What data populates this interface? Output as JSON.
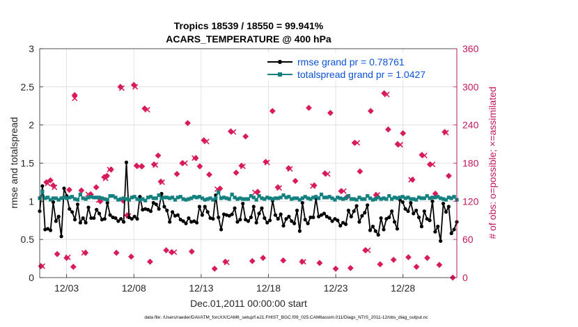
{
  "chart_data": {
    "type": "line",
    "title_line1": "Tropics 18539 / 18550 = 99.941%",
    "title_line2": "ACARS_TEMPERATURE @ 400 hPa",
    "xlabel": "Dec.01,2011 00:00:00 start",
    "ylabel_left": "rmse and totalspread",
    "ylabel_right": "# of obs: o=possible; ×=assimilated",
    "footer": "data file: /Users/raeder/DAI/ATM_forcXX/CAM6_setup/f.e21.FHIST_BGC.f09_025.CAM6assim.011/Diags_NTrS_2011-12/obs_diag_output.nc",
    "x_tick_labels": [
      "12/03",
      "12/08",
      "12/13",
      "12/18",
      "12/23",
      "12/28"
    ],
    "x_tick_days": [
      3,
      8,
      13,
      18,
      23,
      28
    ],
    "xlim_days": [
      1,
      32
    ],
    "ylim_left": [
      0,
      3
    ],
    "y_ticks_left": [
      "0",
      "0.5",
      "1",
      "1.5",
      "2",
      "2.5",
      "3"
    ],
    "y_tick_values_left": [
      0,
      0.5,
      1,
      1.5,
      2,
      2.5,
      3
    ],
    "ylim_right": [
      0,
      360
    ],
    "y_ticks_right": [
      "0",
      "60",
      "120",
      "180",
      "240",
      "300",
      "360"
    ],
    "y_tick_values_right": [
      0,
      60,
      120,
      180,
      240,
      300,
      360
    ],
    "legend_location": "top-right",
    "legend": [
      {
        "label": "rmse grand pr = 0.78761",
        "color": "#000000"
      },
      {
        "label": "totalspread grand pr = 1.0427",
        "color": "#148080"
      }
    ],
    "colors": {
      "rmse": "#000000",
      "spread": "#148080",
      "obs": "#d81b5a",
      "legend_text": "#0a52d6",
      "axis_right": "#c2185b"
    },
    "series": [
      {
        "name": "rmse",
        "color": "#000000",
        "values": [
          0.87,
          1.2,
          0.63,
          0.64,
          0.62,
          0.99,
          0.74,
          0.8,
          0.54,
          1.17,
          1.07,
          0.9,
          0.86,
          0.76,
          0.96,
          0.72,
          0.78,
          0.72,
          0.92,
          0.78,
          0.78,
          0.89,
          0.84,
          0.76,
          0.77,
          0.98,
          0.82,
          0.79,
          0.78,
          0.74,
          0.77,
          0.73,
          1.51,
          0.79,
          0.77,
          0.8,
          0.77,
          1.06,
          0.89,
          0.9,
          0.89,
          0.87,
          0.98,
          0.96,
          0.9,
          1.1,
          0.93,
          0.88,
          0.73,
          0.86,
          0.81,
          0.82,
          0.76,
          0.74,
          0.71,
          0.78,
          0.73,
          0.74,
          0.72,
          0.93,
          0.82,
          0.93,
          0.86,
          0.78,
          0.77,
          1.08,
          0.79,
          0.63,
          0.83,
          0.82,
          0.81,
          0.83,
          0.91,
          0.73,
          0.76,
          0.97,
          0.76,
          0.74,
          0.79,
          0.93,
          0.72,
          0.84,
          0.91,
          0.78,
          0.72,
          0.75,
          1.01,
          0.82,
          0.77,
          0.83,
          0.68,
          0.77,
          0.8,
          0.74,
          0.71,
          0.88,
          0.61,
          0.98,
          0.76,
          0.71,
          0.79,
          0.79,
          1.04,
          0.8,
          0.82,
          0.84,
          0.8,
          0.78,
          0.74,
          0.77,
          0.75,
          0.68,
          0.72,
          0.7,
          0.88,
          0.8,
          0.87,
          0.94,
          0.73,
          0.81,
          0.85,
          0.95,
          0.62,
          0.67,
          0.61,
          0.56,
          0.78,
          0.63,
          0.77,
          0.79,
          0.87,
          0.73,
          0.64,
          1.02,
          0.99,
          0.9,
          0.87,
          0.98,
          0.84,
          0.88,
          0.79,
          0.67,
          0.87,
          0.77,
          0.75,
          1.0,
          0.6,
          0.67,
          0.48,
          0.97,
          0.86,
          0.93,
          0.58,
          0.63,
          0.73
        ]
      },
      {
        "name": "totalspread",
        "color": "#148080",
        "values": [
          1.04,
          1.13,
          1.04,
          1.05,
          1.02,
          1.04,
          1.04,
          1.02,
          1.04,
          1.05,
          1.04,
          1.05,
          1.06,
          1.03,
          1.02,
          1.09,
          1.04,
          1.03,
          1.05,
          1.06,
          1.05,
          1.05,
          1.05,
          1.04,
          1.03,
          1.02,
          1.07,
          1.07,
          1.05,
          1.02,
          1.03,
          1.04,
          1.03,
          1.02,
          1.05,
          1.06,
          1.03,
          1.02,
          1.03,
          1.01,
          1.05,
          1.06,
          1.04,
          1.04,
          1.08,
          1.04,
          1.05,
          1.05,
          1.04,
          1.05,
          1.02,
          1.05,
          1.06,
          1.03,
          1.02,
          1.03,
          1.04,
          1.06,
          1.05,
          1.06,
          1.04,
          1.02,
          1.03,
          1.04,
          1.02,
          1.04,
          1.12,
          1.04,
          1.05,
          1.04,
          1.03,
          1.09,
          1.05,
          1.03,
          1.04,
          1.03,
          1.03,
          1.03,
          1.07,
          1.05,
          1.02,
          1.07,
          1.04,
          1.03,
          1.05,
          1.04,
          1.03,
          1.04,
          1.04,
          1.05,
          1.08,
          1.05,
          1.06,
          1.03,
          1.04,
          1.04,
          1.02,
          1.04,
          1.06,
          1.04,
          1.03,
          1.05,
          1.06,
          1.04,
          1.09,
          1.05,
          1.05,
          1.06,
          1.04,
          1.02,
          1.05,
          1.04,
          1.03,
          1.04,
          1.07,
          1.03,
          1.03,
          1.02,
          1.05,
          1.03,
          1.03,
          1.07,
          1.04,
          1.02,
          1.03,
          1.05,
          1.03,
          1.04,
          1.03,
          1.07,
          1.03,
          1.05,
          1.04,
          1.05,
          1.06,
          1.04,
          1.05,
          1.03,
          1.03,
          1.02,
          1.05,
          1.04,
          1.04,
          1.07,
          1.04,
          1.05,
          1.05,
          1.06,
          1.04,
          1.03,
          1.02,
          1.05,
          1.04,
          1.06,
          1.02
        ]
      }
    ],
    "obs_possible": [
      [
        1.1,
        18
      ],
      [
        1.5,
        150
      ],
      [
        1.8,
        153
      ],
      [
        2.0,
        145
      ],
      [
        2.3,
        37
      ],
      [
        3.0,
        31
      ],
      [
        3.2,
        138
      ],
      [
        3.5,
        17
      ],
      [
        3.6,
        287
      ],
      [
        4.1,
        137
      ],
      [
        4.4,
        39
      ],
      [
        4.8,
        131
      ],
      [
        5.2,
        142
      ],
      [
        5.5,
        120
      ],
      [
        5.8,
        158
      ],
      [
        6.0,
        160
      ],
      [
        6.3,
        170
      ],
      [
        6.7,
        39
      ],
      [
        7.0,
        300
      ],
      [
        7.2,
        121
      ],
      [
        7.5,
        98
      ],
      [
        7.8,
        33
      ],
      [
        8.0,
        303
      ],
      [
        8.2,
        176
      ],
      [
        8.6,
        175
      ],
      [
        8.8,
        266
      ],
      [
        9.2,
        25
      ],
      [
        9.5,
        178
      ],
      [
        9.8,
        192
      ],
      [
        10.0,
        151
      ],
      [
        10.4,
        43
      ],
      [
        10.8,
        40
      ],
      [
        11.2,
        163
      ],
      [
        11.6,
        180
      ],
      [
        12.0,
        243
      ],
      [
        12.3,
        41
      ],
      [
        12.6,
        188
      ],
      [
        12.9,
        175
      ],
      [
        13.2,
        216
      ],
      [
        13.6,
        162
      ],
      [
        14.0,
        14
      ],
      [
        14.4,
        140
      ],
      [
        14.8,
        25
      ],
      [
        15.2,
        230
      ],
      [
        15.6,
        165
      ],
      [
        16.0,
        176
      ],
      [
        16.3,
        222
      ],
      [
        16.8,
        26
      ],
      [
        17.2,
        135
      ],
      [
        17.6,
        31
      ],
      [
        17.8,
        182
      ],
      [
        18.3,
        262
      ],
      [
        18.7,
        142
      ],
      [
        19.1,
        27
      ],
      [
        19.5,
        172
      ],
      [
        20.0,
        152
      ],
      [
        20.5,
        25
      ],
      [
        21.0,
        267
      ],
      [
        21.4,
        145
      ],
      [
        21.8,
        23
      ],
      [
        22.2,
        164
      ],
      [
        22.6,
        259
      ],
      [
        23.0,
        14
      ],
      [
        23.4,
        136
      ],
      [
        23.8,
        126
      ],
      [
        24.1,
        15
      ],
      [
        24.4,
        212
      ],
      [
        24.8,
        167
      ],
      [
        25.2,
        43
      ],
      [
        25.6,
        262
      ],
      [
        26.0,
        130
      ],
      [
        26.3,
        21
      ],
      [
        26.6,
        290
      ],
      [
        26.9,
        233
      ],
      [
        27.3,
        28
      ],
      [
        27.6,
        210
      ],
      [
        28.0,
        227
      ],
      [
        28.4,
        32
      ],
      [
        28.7,
        154
      ],
      [
        29.0,
        17
      ],
      [
        29.4,
        193
      ],
      [
        29.8,
        31
      ],
      [
        30.0,
        178
      ],
      [
        30.4,
        132
      ],
      [
        30.7,
        20
      ],
      [
        31.1,
        229
      ],
      [
        31.4,
        160
      ],
      [
        31.7,
        0
      ]
    ],
    "obs_assimilated": [
      [
        1.2,
        18
      ],
      [
        1.6,
        148
      ],
      [
        2.1,
        142
      ],
      [
        3.1,
        32
      ],
      [
        3.6,
        282
      ],
      [
        4.3,
        39
      ],
      [
        4.6,
        131
      ],
      [
        5.4,
        122
      ],
      [
        5.9,
        156
      ],
      [
        6.2,
        170
      ],
      [
        7.1,
        298
      ],
      [
        7.6,
        97
      ],
      [
        8.1,
        300
      ],
      [
        8.4,
        175
      ],
      [
        9.0,
        264
      ],
      [
        9.6,
        177
      ],
      [
        10.1,
        150
      ],
      [
        11.0,
        40
      ],
      [
        11.8,
        180
      ],
      [
        12.5,
        188
      ],
      [
        13.4,
        214
      ],
      [
        14.2,
        139
      ],
      [
        14.9,
        24
      ],
      [
        15.4,
        229
      ],
      [
        16.1,
        175
      ],
      [
        17.0,
        134
      ],
      [
        17.9,
        181
      ],
      [
        18.8,
        141
      ],
      [
        19.6,
        171
      ],
      [
        20.6,
        25
      ],
      [
        21.3,
        144
      ],
      [
        22.4,
        163
      ],
      [
        23.6,
        136
      ],
      [
        24.6,
        212
      ],
      [
        25.4,
        43
      ],
      [
        26.1,
        130
      ],
      [
        26.8,
        288
      ],
      [
        27.8,
        209
      ],
      [
        28.6,
        154
      ],
      [
        29.6,
        192
      ],
      [
        30.2,
        178
      ],
      [
        31.2,
        228
      ]
    ]
  }
}
